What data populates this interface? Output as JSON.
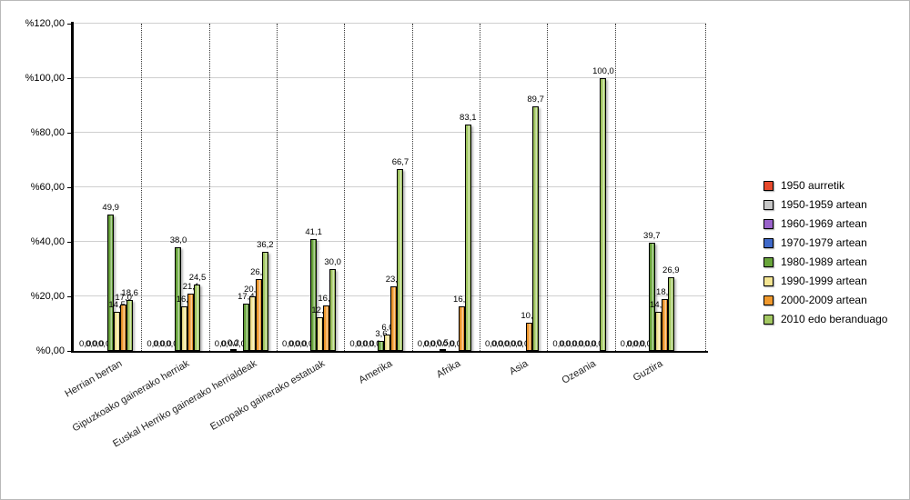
{
  "chart_data": {
    "type": "bar",
    "title": "",
    "xlabel": "",
    "ylabel": "",
    "decimal_separator": ",",
    "y_axis": {
      "min": 0,
      "max": 120,
      "tick_step": 20,
      "tick_labels": [
        "%0,00",
        "%20,00",
        "%40,00",
        "%60,00",
        "%80,00",
        "%100,00",
        "%120,00"
      ]
    },
    "grid": {
      "horizontal": "solid-light-gray",
      "vertical": "dotted-category-separators"
    },
    "legend_position": "right",
    "categories": [
      "Herrian bertan",
      "Gipuzkoako gainerako herriak",
      "Euskal Herriko gainerako herrialdeak",
      "Europako gainerako estatuak",
      "Amerika",
      "Afrika",
      "Asia",
      "Ozeania",
      "Guztira"
    ],
    "series": [
      {
        "name": "1950 aurretik",
        "color": "#e74a2d",
        "values": [
          0.0,
          0.0,
          0.0,
          0.0,
          0.0,
          0.0,
          0.0,
          0.0,
          0.0
        ]
      },
      {
        "name": "1950-1959 artean",
        "color": "#c6c6c6",
        "values": [
          0.0,
          0.0,
          0.0,
          0.0,
          0.0,
          0.0,
          0.0,
          0.0,
          0.0
        ]
      },
      {
        "name": "1960-1969 artean",
        "color": "#9a63cb",
        "values": [
          0.0,
          0.0,
          0.2,
          0.0,
          0.0,
          0.0,
          0.0,
          0.0,
          0.0
        ]
      },
      {
        "name": "1970-1979 artean",
        "color": "#3f69c9",
        "values": [
          0.0,
          0.0,
          0.0,
          0.0,
          0.0,
          0.5,
          0.0,
          0.0,
          0.0
        ]
      },
      {
        "name": "1980-1989 artean",
        "color": "#69a53b",
        "values": [
          49.9,
          38.0,
          17.4,
          41.1,
          3.6,
          0.0,
          0.0,
          0.0,
          39.7
        ]
      },
      {
        "name": "1990-1999 artean",
        "color": "#f3e492",
        "values": [
          14.5,
          16.5,
          20.1,
          12.3,
          6.0,
          0.0,
          0.0,
          0.0,
          14.5
        ]
      },
      {
        "name": "2000-2009 artean",
        "color": "#f0992d",
        "values": [
          17.0,
          21.1,
          26.2,
          16.7,
          23.8,
          16.4,
          10.3,
          0.0,
          18.9
        ]
      },
      {
        "name": "2010 edo beranduago",
        "color": "#a3c862",
        "values": [
          18.6,
          24.5,
          36.2,
          30.0,
          66.7,
          83.1,
          89.7,
          100.0,
          26.9
        ]
      }
    ]
  }
}
